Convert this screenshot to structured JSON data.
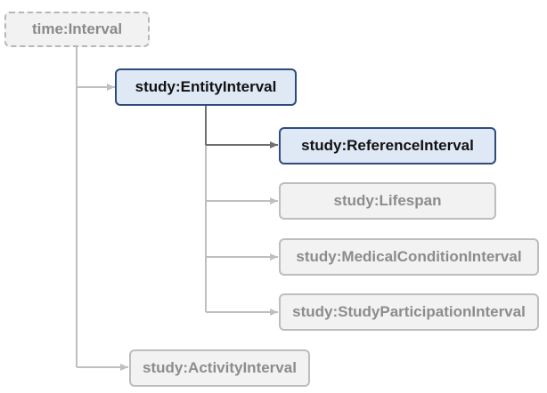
{
  "diagram": {
    "nodes": [
      {
        "id": "time-interval",
        "label": "time:Interval",
        "style": "external"
      },
      {
        "id": "entity-interval",
        "label": "study:EntityInterval",
        "style": "highlighted"
      },
      {
        "id": "reference-interval",
        "label": "study:ReferenceInterval",
        "style": "highlighted"
      },
      {
        "id": "lifespan",
        "label": "study:Lifespan",
        "style": "dimmed"
      },
      {
        "id": "medical-condition-interval",
        "label": "study:MedicalConditionInterval",
        "style": "dimmed"
      },
      {
        "id": "study-participation-interval",
        "label": "study:StudyParticipationInterval",
        "style": "dimmed"
      },
      {
        "id": "activity-interval",
        "label": "study:ActivityInterval",
        "style": "dimmed"
      }
    ],
    "edges": [
      {
        "from": "time-interval",
        "to": "entity-interval"
      },
      {
        "from": "time-interval",
        "to": "activity-interval"
      },
      {
        "from": "entity-interval",
        "to": "reference-interval",
        "emphasis": true
      },
      {
        "from": "entity-interval",
        "to": "lifespan"
      },
      {
        "from": "entity-interval",
        "to": "medical-condition-interval"
      },
      {
        "from": "entity-interval",
        "to": "study-participation-interval"
      }
    ],
    "colors": {
      "highlight_border": "#2f4b7c",
      "highlight_fill": "#dfe8f5",
      "dim_border": "#bdbdbd",
      "dim_fill": "#f2f2f2",
      "edge": "#bfbfbf",
      "edge_emphasis": "#6f6f6f"
    }
  }
}
